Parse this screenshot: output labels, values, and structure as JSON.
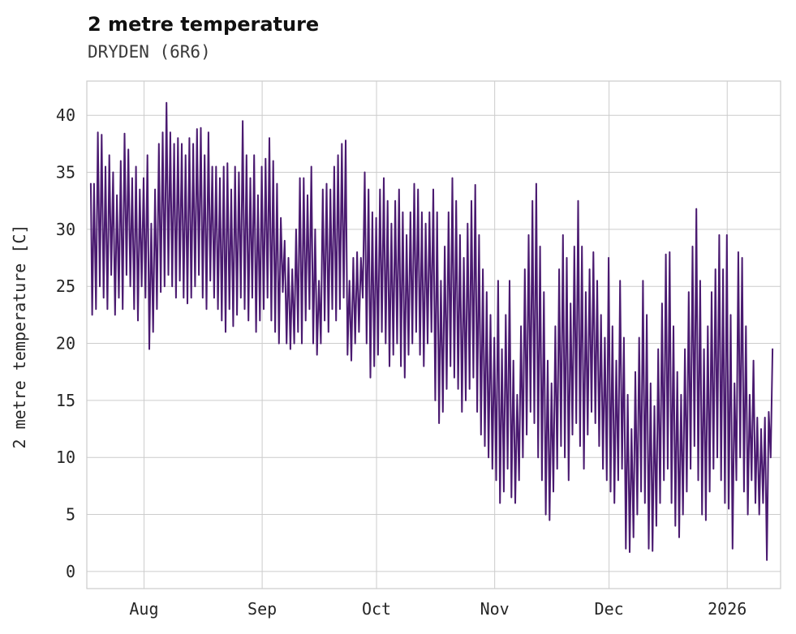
{
  "chart_data": {
    "type": "line",
    "title": "2 metre temperature",
    "subtitle": "DRYDEN (6R6)",
    "ylabel": "2 metre temperature [C]",
    "xlabel": "",
    "grid": true,
    "legend": "none",
    "line_color": "#4a1a70",
    "ylim": [
      -1.5,
      43
    ],
    "y_ticks": [
      0,
      5,
      10,
      15,
      20,
      25,
      30,
      35,
      40
    ],
    "xlim_days": [
      -1,
      181
    ],
    "x_unit": "days from series start (~mid-Jul) to early Jan",
    "x_ticks": [
      {
        "label": "Aug",
        "day": 14
      },
      {
        "label": "Sep",
        "day": 45
      },
      {
        "label": "Oct",
        "day": 75
      },
      {
        "label": "Nov",
        "day": 106
      },
      {
        "label": "Dec",
        "day": 136
      },
      {
        "label": "2026",
        "day": 167
      }
    ],
    "series": [
      {
        "name": "2 metre temperature",
        "sampling": "estimated daily minimum / maximum of dense hourly trace",
        "daily_min": [
          22.5,
          23,
          25,
          24,
          23,
          26,
          22.5,
          24,
          23,
          26,
          25,
          23,
          22,
          25,
          24,
          19.5,
          21,
          23,
          24.5,
          25,
          26,
          25,
          24,
          25.5,
          24,
          23.5,
          24,
          25,
          26,
          24,
          23,
          25.5,
          24,
          23,
          22,
          21,
          23,
          21.5,
          22.5,
          24,
          23,
          22,
          24,
          21,
          22,
          23,
          24,
          22,
          21,
          20,
          24.5,
          20,
          19.5,
          20,
          21,
          20,
          22,
          23,
          20,
          19,
          20,
          22,
          21,
          23,
          22,
          23,
          24,
          19,
          18.5,
          20,
          21,
          24,
          20,
          17,
          18,
          19,
          21,
          20,
          18,
          19,
          20,
          18,
          17,
          19,
          20,
          21,
          19,
          18,
          20,
          21,
          15,
          13,
          14,
          16,
          18,
          17,
          16,
          14,
          15,
          16,
          17,
          14,
          12,
          11,
          10,
          9,
          8,
          6,
          7,
          9,
          6.5,
          6,
          8,
          10,
          12,
          14,
          13,
          10,
          8,
          5,
          4.5,
          7,
          9,
          11,
          10,
          8,
          12,
          13,
          11,
          9,
          12,
          14,
          13,
          11,
          9,
          8,
          7,
          6,
          8,
          9,
          2,
          1.7,
          3,
          5,
          7,
          6,
          2,
          1.8,
          4,
          6,
          8,
          9,
          6,
          4,
          3,
          5,
          7,
          9,
          11,
          8,
          5,
          4.5,
          7,
          9,
          10,
          8,
          6,
          5.5,
          2,
          8,
          10,
          7,
          5,
          8,
          6,
          5,
          6,
          1,
          10
        ],
        "daily_max": [
          34,
          38.5,
          38.3,
          35.5,
          36.5,
          35,
          33,
          36,
          38.4,
          37,
          34.5,
          35.5,
          33.5,
          34.5,
          36.5,
          30.5,
          33.5,
          37.5,
          38.5,
          41.1,
          38.5,
          37.5,
          38,
          37.5,
          36.5,
          38,
          37.5,
          38.8,
          38.9,
          36.5,
          38.5,
          35.5,
          35.5,
          34.5,
          35.5,
          35.8,
          33.5,
          35.5,
          35,
          39.5,
          36.5,
          34.5,
          36.5,
          33,
          35.5,
          36.2,
          38,
          36,
          34,
          31,
          29,
          27.5,
          26.5,
          30,
          34.5,
          34.5,
          33,
          35.5,
          30,
          25.5,
          33.5,
          34,
          33.5,
          35.5,
          36.5,
          37.5,
          37.8,
          25.5,
          27.5,
          28,
          27.5,
          35,
          33.5,
          31.5,
          31,
          33.5,
          34.5,
          32.5,
          30.5,
          32.5,
          33.5,
          31.5,
          29.5,
          31.5,
          34,
          33.5,
          31.5,
          30.5,
          31.5,
          33.5,
          31.5,
          25.5,
          28.5,
          31.5,
          34.5,
          32.5,
          29.5,
          27.5,
          30.5,
          32.5,
          33.9,
          29.5,
          26.5,
          24.5,
          22.5,
          20.5,
          25.5,
          19.5,
          22.5,
          25.5,
          18.5,
          15.5,
          21.5,
          26.5,
          29.5,
          32.5,
          34,
          28.5,
          24.5,
          18.5,
          16.5,
          21.5,
          26.5,
          29.5,
          27.5,
          23.5,
          28.5,
          32.5,
          28.5,
          24.5,
          26.5,
          28,
          25.5,
          22.5,
          20.5,
          27.5,
          21.5,
          18.5,
          25.5,
          20.5,
          15.5,
          12.5,
          17.5,
          20.5,
          25.5,
          22.5,
          16.5,
          14.5,
          19.5,
          23.5,
          27.8,
          28,
          21.5,
          17.5,
          15.5,
          19.5,
          24.5,
          28.5,
          31.8,
          25.5,
          19.5,
          21.5,
          24.5,
          26.5,
          29.5,
          26.5,
          29.5,
          22.5,
          16.5,
          28,
          27.5,
          21.5,
          15.5,
          18.5,
          13.5,
          12.5,
          13.5,
          14,
          19.5
        ]
      }
    ]
  }
}
